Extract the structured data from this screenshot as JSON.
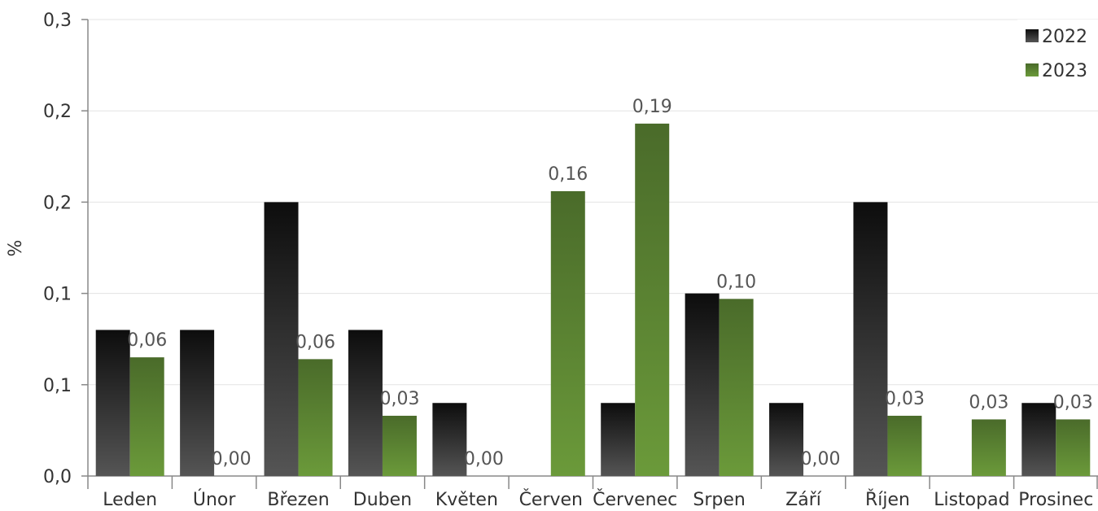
{
  "chart_data": {
    "type": "bar",
    "ylabel": "%",
    "ylim": [
      0,
      0.25
    ],
    "y_tick_labels": [
      "0,0",
      "0,1",
      "0,1",
      "0,2",
      "0,2",
      "0,3"
    ],
    "categories": [
      "Leden",
      "Únor",
      "Březen",
      "Duben",
      "Květen",
      "Červen",
      "Červenec",
      "Srpen",
      "Září",
      "Říjen",
      "Listopad",
      "Prosinec"
    ],
    "series": [
      {
        "name": "2022",
        "color_top": "#0d0d0d",
        "color_bottom": "#555555",
        "values": [
          0.08,
          0.08,
          0.15,
          0.08,
          0.04,
          null,
          0.04,
          0.1,
          0.04,
          0.15,
          null,
          0.04
        ],
        "labels": [
          "",
          "",
          "",
          "",
          "",
          "",
          "",
          "",
          "",
          "",
          "",
          ""
        ]
      },
      {
        "name": "2023",
        "color_top": "#4a6b2a",
        "color_bottom": "#6b9a3a",
        "values": [
          0.065,
          0.0,
          0.064,
          0.033,
          0.0,
          0.156,
          0.193,
          0.097,
          0.0,
          0.033,
          0.031,
          0.031
        ],
        "labels": [
          "0,06",
          "0,00",
          "0,06",
          "0,03",
          "0,00",
          "0,16",
          "0,19",
          "0,10",
          "0,00",
          "0,03",
          "0,03",
          "0,03"
        ]
      }
    ],
    "legend": {
      "position": "top-right",
      "entries": [
        "2022",
        "2023"
      ]
    },
    "gridlines": true
  }
}
